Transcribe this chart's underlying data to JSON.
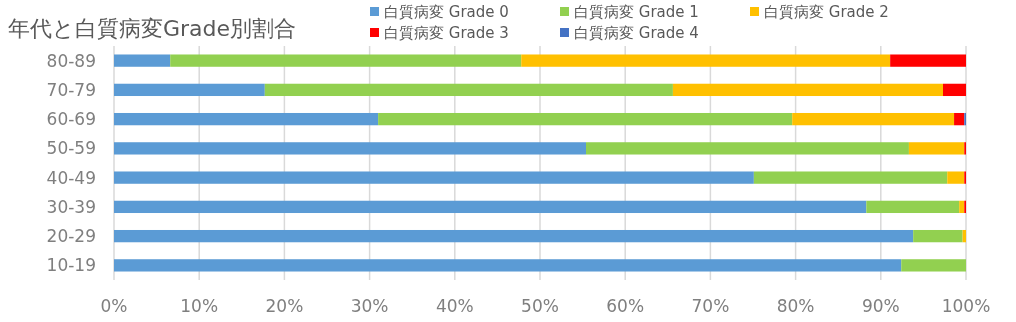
{
  "chart_data": {
    "type": "bar",
    "orientation": "horizontal",
    "stacked": true,
    "title": "年代と白質病変Grade別割合",
    "categories": [
      "80-89",
      "70-79",
      "60-69",
      "50-59",
      "40-49",
      "30-39",
      "20-29",
      "10-19"
    ],
    "series": [
      {
        "name": "白質病変 Grade 0",
        "color": "#5b9bd5",
        "values": [
          6.6,
          17.7,
          31.0,
          55.4,
          75.1,
          88.3,
          93.8,
          92.4
        ]
      },
      {
        "name": "白質病変 Grade 1",
        "color": "#92d050",
        "values": [
          41.2,
          47.9,
          48.6,
          37.9,
          22.7,
          10.9,
          5.8,
          7.6
        ]
      },
      {
        "name": "白質病変 Grade 2",
        "color": "#ffc000",
        "values": [
          43.3,
          31.7,
          19.0,
          6.5,
          2.0,
          0.6,
          0.4,
          0
        ]
      },
      {
        "name": "白質病変 Grade 3",
        "color": "#ff0000",
        "values": [
          8.9,
          2.7,
          1.2,
          0.2,
          0.2,
          0.2,
          0,
          0
        ]
      },
      {
        "name": "白質病変 Grade 4",
        "color": "#4472c4",
        "values": [
          0,
          0,
          0.2,
          0,
          0,
          0,
          0,
          0
        ]
      }
    ],
    "xlim": [
      0,
      100
    ],
    "xticks": [
      {
        "value": 0,
        "label": "0%"
      },
      {
        "value": 10,
        "label": "10%"
      },
      {
        "value": 20,
        "label": "20%"
      },
      {
        "value": 30,
        "label": "30%"
      },
      {
        "value": 40,
        "label": "40%"
      },
      {
        "value": 50,
        "label": "50%"
      },
      {
        "value": 60,
        "label": "60%"
      },
      {
        "value": 70,
        "label": "70%"
      },
      {
        "value": 80,
        "label": "80%"
      },
      {
        "value": 90,
        "label": "90%"
      },
      {
        "value": 100,
        "label": "100%"
      }
    ],
    "grid": "x",
    "legend": "top"
  }
}
